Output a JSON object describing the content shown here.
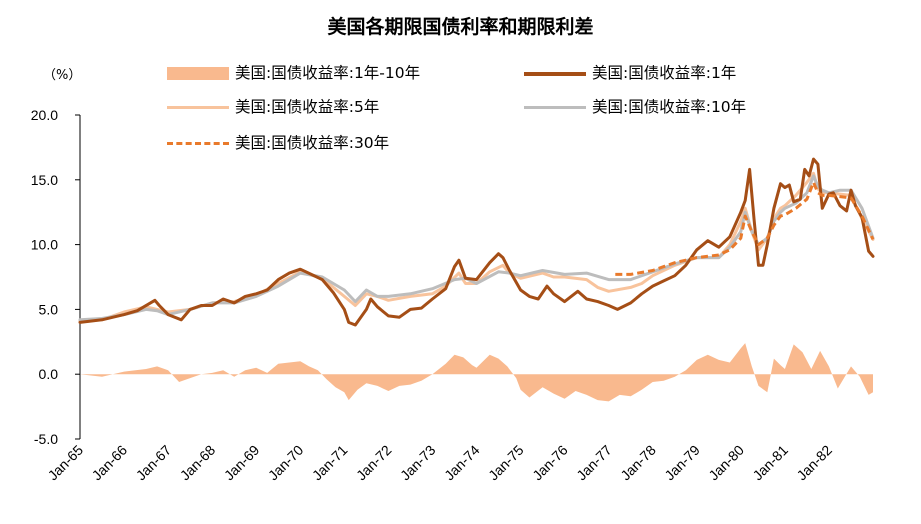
{
  "chart_data": {
    "type": "line",
    "title": "美国各期限国债利率和期限利差",
    "ylabel": "（%）",
    "unit_label": "（%）",
    "ylim": [
      -5,
      20
    ],
    "yticks": [
      "20.0",
      "15.0",
      "10.0",
      "5.0",
      "0.0",
      "-5.0"
    ],
    "ytick_values": [
      20,
      15,
      10,
      5,
      0,
      -5
    ],
    "x_range": [
      1965.0,
      1983.0
    ],
    "x_tick_labels": [
      "Jan-65",
      "Jan-66",
      "Jan-67",
      "Jan-68",
      "Jan-69",
      "Jan-70",
      "Jan-71",
      "Jan-72",
      "Jan-73",
      "Jan-74",
      "Jan-75",
      "Jan-76",
      "Jan-77",
      "Jan-78",
      "Jan-79",
      "Jan-80",
      "Jan-81",
      "Jan-82"
    ],
    "x_tick_years": [
      1965,
      1966,
      1967,
      1968,
      1969,
      1970,
      1971,
      1972,
      1973,
      1974,
      1975,
      1976,
      1977,
      1978,
      1979,
      1980,
      1981,
      1982
    ],
    "series": [
      {
        "key": "spread",
        "name": "美国:国债收益率:1年-10年",
        "style": "area",
        "color": "#f9b98e",
        "x": [
          1965.0,
          1965.5,
          1966.0,
          1966.5,
          1966.75,
          1967.0,
          1967.25,
          1967.5,
          1967.75,
          1968.0,
          1968.25,
          1968.5,
          1968.75,
          1969.0,
          1969.25,
          1969.5,
          1969.75,
          1970.0,
          1970.2,
          1970.4,
          1970.6,
          1970.8,
          1971.0,
          1971.1,
          1971.3,
          1971.5,
          1971.75,
          1972.0,
          1972.25,
          1972.5,
          1972.75,
          1973.0,
          1973.3,
          1973.5,
          1973.7,
          1973.9,
          1974.0,
          1974.3,
          1974.5,
          1974.7,
          1974.9,
          1975.0,
          1975.2,
          1975.5,
          1975.75,
          1976.0,
          1976.25,
          1976.5,
          1976.75,
          1977.0,
          1977.25,
          1977.5,
          1977.75,
          1978.0,
          1978.25,
          1978.5,
          1978.75,
          1979.0,
          1979.25,
          1979.5,
          1979.75,
          1980.0,
          1980.1,
          1980.25,
          1980.4,
          1980.6,
          1980.75,
          1980.9,
          1981.0,
          1981.2,
          1981.4,
          1981.6,
          1981.8,
          1982.0,
          1982.2,
          1982.5,
          1982.7,
          1982.9,
          1983.0
        ],
        "values": [
          0,
          -0.2,
          0.2,
          0.4,
          0.6,
          0.3,
          -0.6,
          -0.3,
          0,
          0.1,
          0.3,
          -0.2,
          0.3,
          0.5,
          0.1,
          0.8,
          0.9,
          1.0,
          0.6,
          0.3,
          -0.4,
          -1.0,
          -1.4,
          -2.0,
          -1.2,
          -0.7,
          -0.9,
          -1.3,
          -0.9,
          -0.8,
          -0.5,
          0,
          0.8,
          1.5,
          1.3,
          0.7,
          0.5,
          1.5,
          1.2,
          0.6,
          -0.3,
          -1.2,
          -1.8,
          -1.0,
          -1.5,
          -1.9,
          -1.3,
          -1.6,
          -2.0,
          -2.1,
          -1.6,
          -1.7,
          -1.2,
          -0.6,
          -0.5,
          -0.2,
          0.3,
          1.1,
          1.5,
          1.1,
          0.9,
          2.0,
          2.4,
          0.6,
          -0.9,
          -1.4,
          1.2,
          0.7,
          0.4,
          2.3,
          1.7,
          0.4,
          1.8,
          0.6,
          -1.1,
          0.6,
          -0.2,
          -1.6,
          -1.4
        ]
      },
      {
        "key": "y1",
        "name": "美国:国债收益率:1年",
        "style": "line",
        "color": "#a54e16",
        "x": [
          1965.0,
          1965.5,
          1966.0,
          1966.3,
          1966.7,
          1966.8,
          1967.0,
          1967.3,
          1967.5,
          1967.75,
          1968.0,
          1968.25,
          1968.5,
          1968.75,
          1969.0,
          1969.25,
          1969.5,
          1969.75,
          1970.0,
          1970.25,
          1970.5,
          1970.75,
          1971.0,
          1971.1,
          1971.25,
          1971.5,
          1971.6,
          1971.75,
          1972.0,
          1972.25,
          1972.5,
          1972.75,
          1973.0,
          1973.3,
          1973.5,
          1973.6,
          1973.75,
          1974.0,
          1974.3,
          1974.5,
          1974.6,
          1974.75,
          1975.0,
          1975.2,
          1975.4,
          1975.6,
          1975.75,
          1976.0,
          1976.3,
          1976.5,
          1976.75,
          1977.0,
          1977.2,
          1977.5,
          1977.75,
          1978.0,
          1978.25,
          1978.5,
          1978.75,
          1979.0,
          1979.25,
          1979.5,
          1979.75,
          1980.0,
          1980.1,
          1980.2,
          1980.3,
          1980.4,
          1980.5,
          1980.6,
          1980.75,
          1980.9,
          1981.0,
          1981.1,
          1981.2,
          1981.35,
          1981.45,
          1981.55,
          1981.65,
          1981.75,
          1981.85,
          1982.0,
          1982.1,
          1982.25,
          1982.4,
          1982.5,
          1982.6,
          1982.75,
          1982.9,
          1983.0
        ],
        "values": [
          4.0,
          4.2,
          4.6,
          4.9,
          5.7,
          5.3,
          4.6,
          4.2,
          5.0,
          5.3,
          5.3,
          5.8,
          5.5,
          6.0,
          6.2,
          6.5,
          7.3,
          7.8,
          8.1,
          7.7,
          7.3,
          6.3,
          5.0,
          4.0,
          3.8,
          5.0,
          5.8,
          5.2,
          4.5,
          4.4,
          5.0,
          5.1,
          5.8,
          6.6,
          8.3,
          8.8,
          7.4,
          7.3,
          8.6,
          9.3,
          9.0,
          8.0,
          6.5,
          6.0,
          5.8,
          6.8,
          6.2,
          5.6,
          6.4,
          5.8,
          5.6,
          5.3,
          5.0,
          5.5,
          6.2,
          6.8,
          7.2,
          7.6,
          8.4,
          9.6,
          10.3,
          9.8,
          10.6,
          12.5,
          13.4,
          15.8,
          12.0,
          8.4,
          8.4,
          10.0,
          12.8,
          14.7,
          14.4,
          14.6,
          13.3,
          13.5,
          15.8,
          15.3,
          16.6,
          16.2,
          12.8,
          13.9,
          14.0,
          13.0,
          12.6,
          14.2,
          13.0,
          12.1,
          9.5,
          9.1
        ]
      },
      {
        "key": "y5",
        "name": "美国:国债收益率:5年",
        "style": "line",
        "color": "#f8c39c",
        "x": [
          1965.0,
          1965.5,
          1966.0,
          1966.5,
          1966.75,
          1967.0,
          1967.5,
          1968.0,
          1968.5,
          1969.0,
          1969.5,
          1970.0,
          1970.5,
          1971.0,
          1971.25,
          1971.5,
          1971.75,
          1972.0,
          1972.5,
          1973.0,
          1973.3,
          1973.6,
          1973.75,
          1974.0,
          1974.3,
          1974.6,
          1974.75,
          1975.0,
          1975.5,
          1975.75,
          1976.0,
          1976.5,
          1976.75,
          1977.0,
          1977.5,
          1977.75,
          1978.0,
          1978.5,
          1979.0,
          1979.5,
          1979.75,
          1980.0,
          1980.1,
          1980.25,
          1980.4,
          1980.6,
          1980.75,
          1980.9,
          1981.0,
          1981.25,
          1981.5,
          1981.65,
          1981.75,
          1981.85,
          1982.0,
          1982.25,
          1982.5,
          1982.75,
          1983.0
        ],
        "values": [
          4.1,
          4.2,
          4.8,
          5.2,
          5.0,
          4.8,
          5.0,
          5.5,
          5.6,
          6.1,
          7.0,
          7.9,
          7.4,
          6.0,
          5.3,
          6.2,
          6.0,
          5.7,
          6.0,
          6.2,
          6.8,
          7.8,
          7.0,
          7.0,
          7.9,
          8.4,
          7.8,
          7.4,
          7.8,
          7.5,
          7.5,
          7.3,
          6.7,
          6.4,
          6.7,
          7.0,
          7.6,
          8.4,
          9.0,
          9.0,
          10.0,
          11.8,
          12.8,
          11.0,
          9.6,
          10.5,
          12.0,
          12.8,
          13.0,
          13.8,
          14.8,
          15.5,
          14.3,
          14.0,
          14.0,
          13.9,
          13.8,
          12.0,
          10.4
        ]
      },
      {
        "key": "y10",
        "name": "美国:国债收益率:10年",
        "style": "line",
        "color": "#bdbdbd",
        "x": [
          1965.0,
          1965.5,
          1966.0,
          1966.5,
          1966.75,
          1967.0,
          1967.5,
          1968.0,
          1968.5,
          1969.0,
          1969.5,
          1970.0,
          1970.5,
          1971.0,
          1971.25,
          1971.5,
          1971.75,
          1972.0,
          1972.5,
          1973.0,
          1973.5,
          1973.75,
          1974.0,
          1974.5,
          1974.75,
          1975.0,
          1975.5,
          1976.0,
          1976.5,
          1977.0,
          1977.5,
          1978.0,
          1978.5,
          1979.0,
          1979.5,
          1979.75,
          1980.0,
          1980.1,
          1980.25,
          1980.4,
          1980.6,
          1980.75,
          1980.9,
          1981.0,
          1981.25,
          1981.5,
          1981.65,
          1981.75,
          1981.85,
          1982.0,
          1982.25,
          1982.5,
          1982.75,
          1983.0
        ],
        "values": [
          4.2,
          4.3,
          4.6,
          5.0,
          4.9,
          4.6,
          5.0,
          5.5,
          5.5,
          6.0,
          6.8,
          7.8,
          7.5,
          6.5,
          5.6,
          6.5,
          6.0,
          6.0,
          6.2,
          6.6,
          7.3,
          7.4,
          7.0,
          7.9,
          7.8,
          7.6,
          8.0,
          7.7,
          7.8,
          7.3,
          7.3,
          7.9,
          8.5,
          9.0,
          9.0,
          9.8,
          11.0,
          12.5,
          11.0,
          10.0,
          10.5,
          11.8,
          12.5,
          12.8,
          13.2,
          14.0,
          15.3,
          14.5,
          14.2,
          14.0,
          14.2,
          14.2,
          12.8,
          10.5
        ]
      },
      {
        "key": "y30",
        "name": "美国:国债收益率:30年",
        "style": "dashed",
        "color": "#e97a2b",
        "x": [
          1977.15,
          1977.5,
          1978.0,
          1978.5,
          1979.0,
          1979.5,
          1979.75,
          1980.0,
          1980.1,
          1980.25,
          1980.4,
          1980.6,
          1980.75,
          1980.9,
          1981.0,
          1981.25,
          1981.5,
          1981.65,
          1981.75,
          1981.85,
          1982.0,
          1982.25,
          1982.5,
          1982.75,
          1983.0
        ],
        "values": [
          7.7,
          7.7,
          8.0,
          8.6,
          9.0,
          9.2,
          9.6,
          10.5,
          12.2,
          11.0,
          10.0,
          10.5,
          11.5,
          12.2,
          12.3,
          12.8,
          13.5,
          14.8,
          14.0,
          13.8,
          13.8,
          13.7,
          13.6,
          12.2,
          10.4
        ]
      }
    ]
  }
}
